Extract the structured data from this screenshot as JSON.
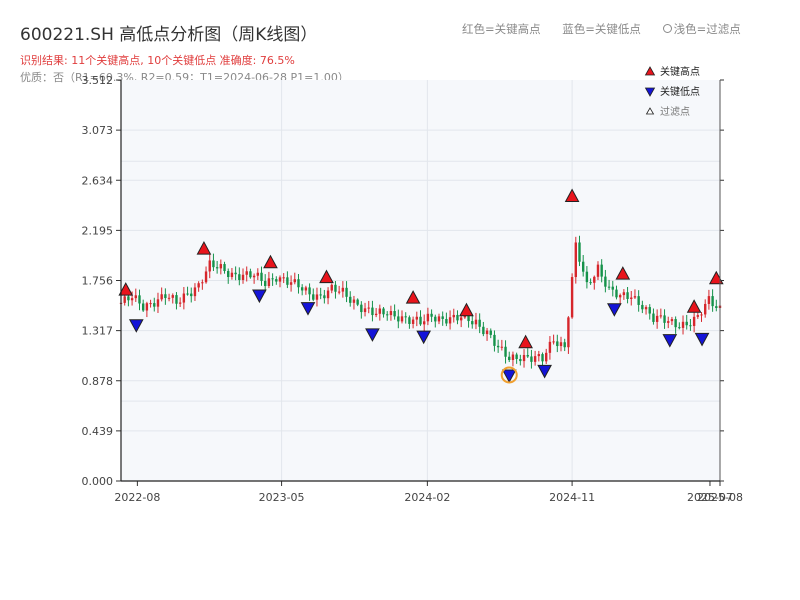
{
  "title": "600221.SH 高低点分析图（周K线图）",
  "subtitle": "识别结果: 11个关键高点, 10个关键低点  准确度: 76.5%",
  "subtitle2": "优质：否（R1=60.3%, R2=0.59；T1=2024-06-28 P1=1.00）",
  "caption": {
    "red": "红色=关键高点",
    "blue": "蓝色=关键低点",
    "light": "浅色=过滤点"
  },
  "colors": {
    "up": "#d6262b",
    "down": "#15924a",
    "high_marker": "#e8141c",
    "low_marker": "#1414d8",
    "highlight": "#f0a030",
    "plot_bg": "#f6f8fb",
    "grid": "#e2e6ec"
  },
  "chart_data": {
    "type": "candlestick",
    "title": "600221.SH 高低点分析图（周K线图）",
    "ylim": [
      0,
      3.512
    ],
    "y_ticks": [
      "0.000",
      "0.439",
      "0.878",
      "1.317",
      "1.756",
      "2.195",
      "2.634",
      "3.073",
      "3.512"
    ],
    "x_range": [
      "2022-07-01",
      "2025-08-08"
    ],
    "x_ticks": [
      {
        "date": "2022-08-01",
        "label": "2022-08"
      },
      {
        "date": "2023-05-01",
        "label": "2023-05"
      },
      {
        "date": "2024-02-01",
        "label": "2024-02"
      },
      {
        "date": "2024-11-01",
        "label": "2024-11"
      },
      {
        "date": "2025-07-20",
        "label": "2025-07"
      },
      {
        "date": "2025-08-08",
        "label": "2025-08"
      }
    ],
    "legend": {
      "position": "top-right",
      "items": [
        {
          "label": "关键高点",
          "marker": "triangle-up",
          "color": "#e8141c"
        },
        {
          "label": "关键低点",
          "marker": "triangle-down",
          "color": "#1414d8"
        },
        {
          "label": "过滤点",
          "marker": "triangle-up-hollow",
          "color": "#ffffff"
        }
      ]
    },
    "series_close": [
      [
        "2022-07-01",
        1.56
      ],
      [
        "2022-07-22",
        1.6
      ],
      [
        "2022-08-12",
        1.53
      ],
      [
        "2022-09-02",
        1.58
      ],
      [
        "2022-09-23",
        1.62
      ],
      [
        "2022-10-14",
        1.55
      ],
      [
        "2022-11-04",
        1.65
      ],
      [
        "2022-11-25",
        1.72
      ],
      [
        "2022-12-16",
        1.88
      ],
      [
        "2023-01-06",
        1.86
      ],
      [
        "2023-01-27",
        1.82
      ],
      [
        "2023-02-17",
        1.8
      ],
      [
        "2023-03-10",
        1.79
      ],
      [
        "2023-03-31",
        1.74
      ],
      [
        "2023-04-21",
        1.8
      ],
      [
        "2023-05-12",
        1.74
      ],
      [
        "2023-06-02",
        1.7
      ],
      [
        "2023-06-23",
        1.65
      ],
      [
        "2023-07-14",
        1.62
      ],
      [
        "2023-08-04",
        1.67
      ],
      [
        "2023-08-25",
        1.65
      ],
      [
        "2023-09-15",
        1.58
      ],
      [
        "2023-10-06",
        1.5
      ],
      [
        "2023-10-27",
        1.45
      ],
      [
        "2023-11-17",
        1.48
      ],
      [
        "2023-12-08",
        1.45
      ],
      [
        "2023-12-29",
        1.4
      ],
      [
        "2024-01-19",
        1.38
      ],
      [
        "2024-02-09",
        1.46
      ],
      [
        "2024-03-01",
        1.42
      ],
      [
        "2024-03-22",
        1.41
      ],
      [
        "2024-04-12",
        1.43
      ],
      [
        "2024-05-03",
        1.4
      ],
      [
        "2024-05-24",
        1.3
      ],
      [
        "2024-06-14",
        1.15
      ],
      [
        "2024-07-05",
        1.08
      ],
      [
        "2024-07-26",
        1.1
      ],
      [
        "2024-08-16",
        1.07
      ],
      [
        "2024-09-06",
        1.06
      ],
      [
        "2024-09-27",
        1.25
      ],
      [
        "2024-10-18",
        1.18
      ],
      [
        "2024-11-08",
        2.05
      ],
      [
        "2024-11-29",
        1.7
      ],
      [
        "2024-12-20",
        1.88
      ],
      [
        "2025-01-10",
        1.68
      ],
      [
        "2025-01-31",
        1.6
      ],
      [
        "2025-02-21",
        1.62
      ],
      [
        "2025-03-14",
        1.55
      ],
      [
        "2025-04-04",
        1.42
      ],
      [
        "2025-04-25",
        1.4
      ],
      [
        "2025-05-16",
        1.38
      ],
      [
        "2025-06-06",
        1.38
      ],
      [
        "2025-06-27",
        1.42
      ],
      [
        "2025-07-18",
        1.58
      ],
      [
        "2025-08-08",
        1.52
      ]
    ],
    "key_highs": [
      [
        "2022-07-10",
        1.61
      ],
      [
        "2022-12-05",
        1.97
      ],
      [
        "2023-04-10",
        1.85
      ],
      [
        "2023-07-25",
        1.72
      ],
      [
        "2024-01-05",
        1.54
      ],
      [
        "2024-04-15",
        1.43
      ],
      [
        "2024-08-05",
        1.15
      ],
      [
        "2024-11-01",
        2.43
      ],
      [
        "2025-02-05",
        1.75
      ],
      [
        "2025-06-20",
        1.46
      ],
      [
        "2025-08-01",
        1.71
      ]
    ],
    "key_lows": [
      [
        "2022-07-30",
        1.43
      ],
      [
        "2023-03-20",
        1.69
      ],
      [
        "2023-06-20",
        1.58
      ],
      [
        "2023-10-20",
        1.35
      ],
      [
        "2024-01-25",
        1.33
      ],
      [
        "2024-07-05",
        0.99
      ],
      [
        "2024-09-10",
        1.03
      ],
      [
        "2025-01-20",
        1.57
      ],
      [
        "2025-05-05",
        1.3
      ],
      [
        "2025-07-05",
        1.31
      ]
    ],
    "highlighted_point": [
      "2024-07-05",
      0.99
    ]
  }
}
